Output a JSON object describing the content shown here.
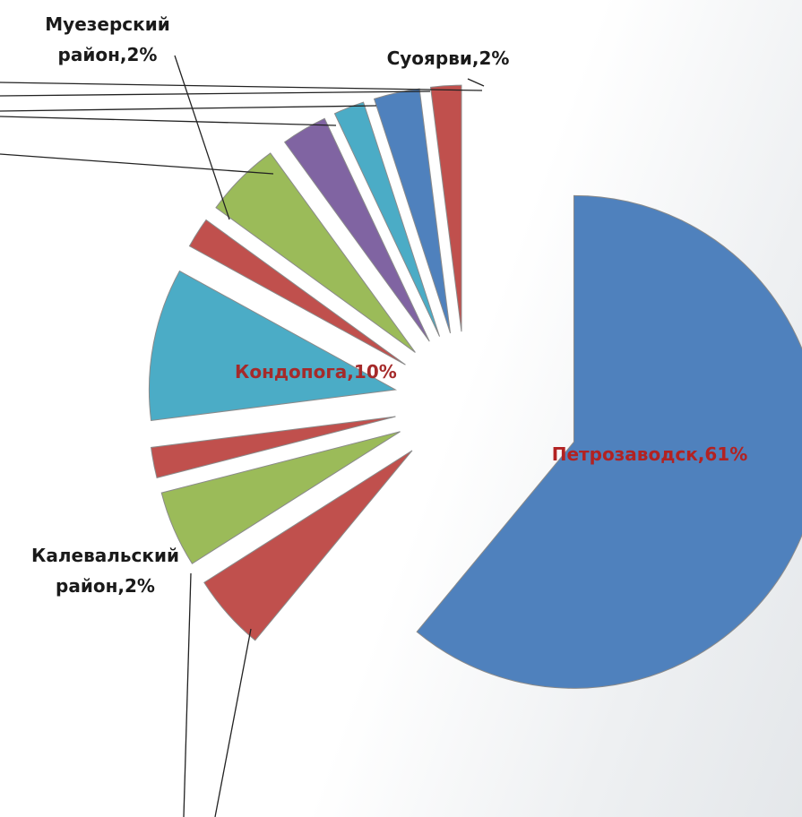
{
  "chart_data": {
    "type": "pie",
    "values": [
      61,
      5,
      5,
      2,
      10,
      2,
      5,
      3,
      2,
      3,
      2
    ],
    "value_labels": [
      "Петрозаводск,61%",
      null,
      null,
      "Калевальский район,2%",
      "Кондопога,10%",
      "Муезерский район,2%",
      null,
      null,
      null,
      null,
      "Суоярви,2%"
    ],
    "colors": [
      "#4f81bd",
      "#c0504d",
      "#9bbb59",
      "#c0504d",
      "#4bacc6",
      "#c0504d",
      "#9bbb59",
      "#8064a2",
      "#4bacc6",
      "#4f81bd",
      "#c0504d"
    ]
  }
}
